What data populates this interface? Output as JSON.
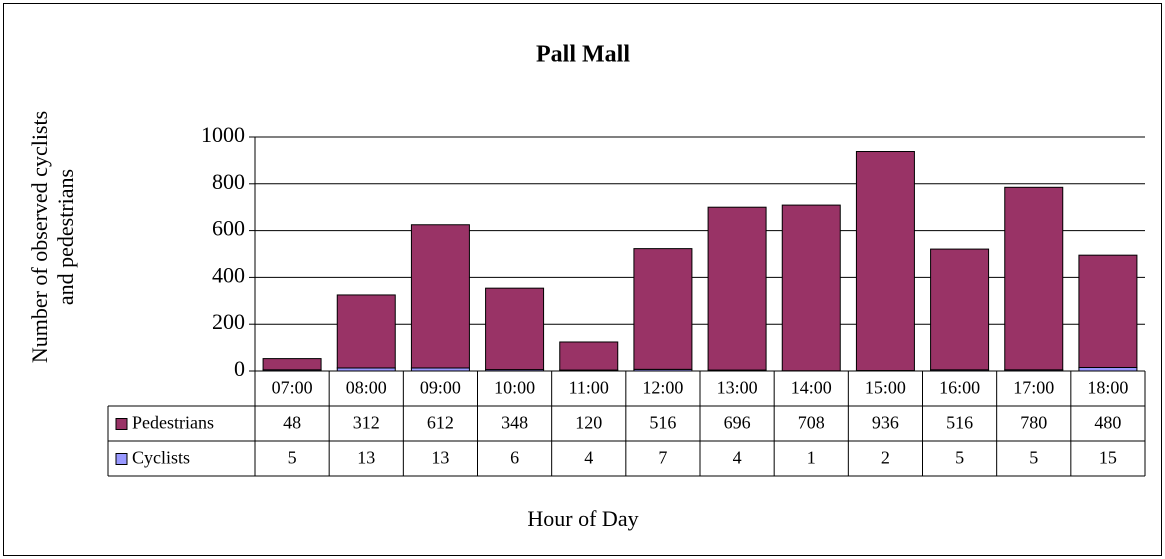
{
  "chart_data": {
    "type": "bar",
    "stacked": true,
    "title": "Pall Mall",
    "y_label": [
      "Number of observed cyclists",
      "and pedestrians"
    ],
    "x_label": "Hour of Day",
    "categories": [
      "07:00",
      "08:00",
      "09:00",
      "10:00",
      "11:00",
      "12:00",
      "13:00",
      "14:00",
      "15:00",
      "16:00",
      "17:00",
      "18:00"
    ],
    "series": [
      {
        "name": "Pedestrians",
        "color": "#993366",
        "values": [
          48,
          312,
          612,
          348,
          120,
          516,
          696,
          708,
          936,
          516,
          780,
          480
        ]
      },
      {
        "name": "Cyclists",
        "color": "#9999ff",
        "values": [
          5,
          13,
          13,
          6,
          4,
          7,
          4,
          1,
          2,
          5,
          5,
          15
        ]
      }
    ],
    "ylim": [
      0,
      1000
    ],
    "yticks": [
      0,
      200,
      400,
      600,
      800,
      1000
    ],
    "grid": true
  }
}
